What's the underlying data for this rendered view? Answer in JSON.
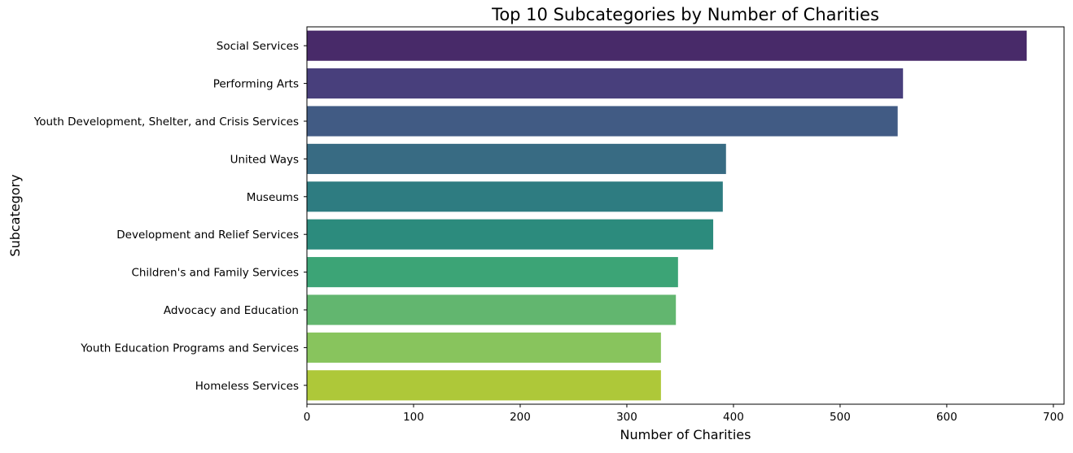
{
  "chart_data": {
    "type": "bar",
    "orientation": "horizontal",
    "title": "Top 10 Subcategories by Number of Charities",
    "xlabel": "Number of Charities",
    "ylabel": "Subcategory",
    "xlim": [
      0,
      710
    ],
    "xticks": [
      0,
      100,
      200,
      300,
      400,
      500,
      600,
      700
    ],
    "grid": false,
    "legend": "none",
    "categories": [
      "Social Services",
      "Performing Arts",
      "Youth Development, Shelter, and Crisis Services",
      "United Ways",
      "Museums",
      "Development and Relief Services",
      "Children's and Family Services",
      "Advocacy and Education",
      "Youth Education Programs and Services",
      "Homeless Services"
    ],
    "values": [
      675,
      559,
      554,
      393,
      390,
      381,
      348,
      346,
      332,
      332
    ],
    "colors": [
      "#482a69",
      "#483f7c",
      "#415b84",
      "#386b83",
      "#2e7c81",
      "#2c8b7d",
      "#3ca476",
      "#62b66f",
      "#88c45d",
      "#aec839"
    ]
  }
}
